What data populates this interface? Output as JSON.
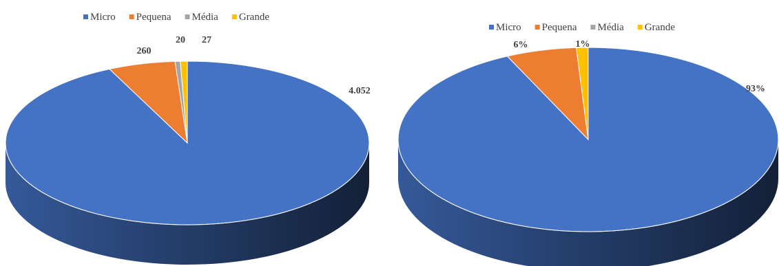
{
  "chart_data": [
    {
      "type": "pie",
      "style": "3d",
      "categories": [
        "Micro",
        "Pequena",
        "Média",
        "Grande"
      ],
      "values": [
        4052,
        260,
        20,
        27
      ],
      "data_labels": [
        "4.052",
        "260",
        "20",
        "27"
      ],
      "colors": [
        "#4472c4",
        "#ed7d31",
        "#a5a5a5",
        "#ffc000"
      ],
      "legend": {
        "position": "top",
        "entries": [
          "Micro",
          "Pequena",
          "Média",
          "Grande"
        ]
      }
    },
    {
      "type": "pie",
      "style": "3d",
      "categories": [
        "Micro",
        "Pequena",
        "Média",
        "Grande"
      ],
      "values": [
        93,
        6,
        0,
        1
      ],
      "data_labels": [
        "93%",
        "6%",
        "",
        "1%"
      ],
      "colors": [
        "#4472c4",
        "#ed7d31",
        "#a5a5a5",
        "#ffc000"
      ],
      "legend": {
        "position": "top",
        "entries": [
          "Micro",
          "Pequena",
          "Média",
          "Grande"
        ]
      }
    }
  ]
}
